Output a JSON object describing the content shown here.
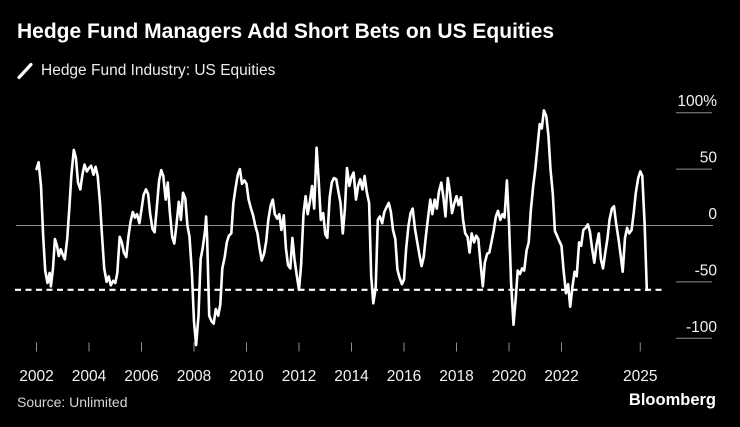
{
  "header": {
    "title": "Hedge Fund Managers Add Short Bets on US Equities"
  },
  "legend": {
    "marker": "diagonal-line-marker",
    "series_label": "Hedge Fund Industry: US Equities"
  },
  "footer": {
    "source": "Source: Unlimited",
    "brand": "Bloomberg"
  },
  "colors": {
    "background": "#000000",
    "series_line": "#ffffff",
    "zero_line": "#8f8f8f",
    "tick": "#8f8f8f",
    "axis_text": "#f2f2f2",
    "reference_dash": "#ffffff"
  },
  "chart_data": {
    "type": "line",
    "title": "Hedge Fund Managers Add Short Bets on US Equities",
    "ylabel": "%",
    "ylim": [
      -115,
      110
    ],
    "xlim": [
      2001.6,
      2025.6
    ],
    "grid": "zero-line-only",
    "legend_position": "top-left",
    "y_axis": {
      "side": "right",
      "ticks": [
        {
          "label": "100%",
          "value": 100
        },
        {
          "label": "50",
          "value": 50
        },
        {
          "label": "0",
          "value": 0
        },
        {
          "label": "-50",
          "value": -50
        },
        {
          "label": "-100",
          "value": -100
        }
      ]
    },
    "x_axis": {
      "ticks": [
        {
          "label": "2002",
          "year": 2002
        },
        {
          "label": "2004",
          "year": 2004
        },
        {
          "label": "2006",
          "year": 2006
        },
        {
          "label": "2008",
          "year": 2008
        },
        {
          "label": "2010",
          "year": 2010
        },
        {
          "label": "2012",
          "year": 2012
        },
        {
          "label": "2014",
          "year": 2014
        },
        {
          "label": "2016",
          "year": 2016
        },
        {
          "label": "2018",
          "year": 2018
        },
        {
          "label": "2020",
          "year": 2020
        },
        {
          "label": "2022",
          "year": 2022
        },
        {
          "label": "2025",
          "year": 2025
        }
      ]
    },
    "zero_line_value": 0,
    "reference_line": {
      "style": "dashed",
      "value": -57
    },
    "series": [
      {
        "name": "Hedge Fund Industry: US Equities",
        "unit": "%",
        "points": [
          [
            2002.0,
            50
          ],
          [
            2002.08,
            56
          ],
          [
            2002.17,
            35
          ],
          [
            2002.25,
            -8
          ],
          [
            2002.33,
            -40
          ],
          [
            2002.42,
            -51
          ],
          [
            2002.5,
            -42
          ],
          [
            2002.55,
            -54
          ],
          [
            2002.63,
            -38
          ],
          [
            2002.7,
            -12
          ],
          [
            2002.78,
            -18
          ],
          [
            2002.85,
            -27
          ],
          [
            2002.92,
            -21
          ],
          [
            2003.0,
            -26
          ],
          [
            2003.08,
            -30
          ],
          [
            2003.17,
            -12
          ],
          [
            2003.25,
            15
          ],
          [
            2003.33,
            45
          ],
          [
            2003.42,
            67
          ],
          [
            2003.5,
            60
          ],
          [
            2003.58,
            38
          ],
          [
            2003.67,
            32
          ],
          [
            2003.75,
            45
          ],
          [
            2003.83,
            54
          ],
          [
            2003.92,
            48
          ],
          [
            2004.0,
            51
          ],
          [
            2004.08,
            53
          ],
          [
            2004.17,
            45
          ],
          [
            2004.25,
            52
          ],
          [
            2004.33,
            44
          ],
          [
            2004.42,
            20
          ],
          [
            2004.5,
            -10
          ],
          [
            2004.58,
            -38
          ],
          [
            2004.67,
            -50
          ],
          [
            2004.75,
            -45
          ],
          [
            2004.83,
            -53
          ],
          [
            2004.92,
            -49
          ],
          [
            2005.0,
            -51
          ],
          [
            2005.08,
            -42
          ],
          [
            2005.17,
            -10
          ],
          [
            2005.25,
            -15
          ],
          [
            2005.33,
            -24
          ],
          [
            2005.42,
            -28
          ],
          [
            2005.5,
            -10
          ],
          [
            2005.58,
            3
          ],
          [
            2005.67,
            12
          ],
          [
            2005.75,
            7
          ],
          [
            2005.83,
            10
          ],
          [
            2005.92,
            2
          ],
          [
            2006.0,
            14
          ],
          [
            2006.08,
            27
          ],
          [
            2006.17,
            32
          ],
          [
            2006.25,
            28
          ],
          [
            2006.33,
            10
          ],
          [
            2006.42,
            -3
          ],
          [
            2006.5,
            -6
          ],
          [
            2006.58,
            15
          ],
          [
            2006.67,
            40
          ],
          [
            2006.75,
            49
          ],
          [
            2006.83,
            44
          ],
          [
            2006.92,
            23
          ],
          [
            2007.0,
            38
          ],
          [
            2007.08,
            12
          ],
          [
            2007.17,
            -10
          ],
          [
            2007.25,
            -16
          ],
          [
            2007.33,
            0
          ],
          [
            2007.42,
            21
          ],
          [
            2007.5,
            5
          ],
          [
            2007.58,
            29
          ],
          [
            2007.67,
            24
          ],
          [
            2007.75,
            0
          ],
          [
            2007.83,
            -10
          ],
          [
            2007.92,
            -42
          ],
          [
            2008.0,
            -85
          ],
          [
            2008.08,
            -106
          ],
          [
            2008.17,
            -80
          ],
          [
            2008.25,
            -30
          ],
          [
            2008.33,
            -20
          ],
          [
            2008.42,
            -5
          ],
          [
            2008.46,
            8
          ],
          [
            2008.5,
            -10
          ],
          [
            2008.58,
            -80
          ],
          [
            2008.67,
            -85
          ],
          [
            2008.75,
            -87
          ],
          [
            2008.83,
            -74
          ],
          [
            2008.92,
            -80
          ],
          [
            2009.0,
            -70
          ],
          [
            2009.08,
            -38
          ],
          [
            2009.17,
            -28
          ],
          [
            2009.25,
            -15
          ],
          [
            2009.33,
            -9
          ],
          [
            2009.42,
            -7
          ],
          [
            2009.5,
            20
          ],
          [
            2009.58,
            33
          ],
          [
            2009.67,
            45
          ],
          [
            2009.75,
            50
          ],
          [
            2009.83,
            37
          ],
          [
            2009.92,
            40
          ],
          [
            2010.0,
            37
          ],
          [
            2010.08,
            23
          ],
          [
            2010.17,
            15
          ],
          [
            2010.25,
            9
          ],
          [
            2010.33,
            0
          ],
          [
            2010.42,
            -7
          ],
          [
            2010.5,
            -20
          ],
          [
            2010.58,
            -31
          ],
          [
            2010.67,
            -25
          ],
          [
            2010.75,
            -14
          ],
          [
            2010.83,
            5
          ],
          [
            2010.92,
            18
          ],
          [
            2011.0,
            23
          ],
          [
            2011.08,
            10
          ],
          [
            2011.17,
            6
          ],
          [
            2011.25,
            10
          ],
          [
            2011.33,
            -4
          ],
          [
            2011.42,
            9
          ],
          [
            2011.5,
            -20
          ],
          [
            2011.58,
            -35
          ],
          [
            2011.67,
            -38
          ],
          [
            2011.75,
            -11
          ],
          [
            2011.83,
            -30
          ],
          [
            2011.92,
            -45
          ],
          [
            2012.0,
            -57
          ],
          [
            2012.08,
            -35
          ],
          [
            2012.17,
            10
          ],
          [
            2012.25,
            26
          ],
          [
            2012.33,
            10
          ],
          [
            2012.42,
            22
          ],
          [
            2012.5,
            35
          ],
          [
            2012.58,
            15
          ],
          [
            2012.67,
            69
          ],
          [
            2012.75,
            40
          ],
          [
            2012.83,
            5
          ],
          [
            2012.92,
            11
          ],
          [
            2013.0,
            -8
          ],
          [
            2013.08,
            -11
          ],
          [
            2013.17,
            25
          ],
          [
            2013.25,
            38
          ],
          [
            2013.33,
            42
          ],
          [
            2013.42,
            41
          ],
          [
            2013.5,
            30
          ],
          [
            2013.58,
            20
          ],
          [
            2013.67,
            -7
          ],
          [
            2013.75,
            15
          ],
          [
            2013.83,
            51
          ],
          [
            2013.92,
            35
          ],
          [
            2014.0,
            43
          ],
          [
            2014.08,
            47
          ],
          [
            2014.17,
            23
          ],
          [
            2014.25,
            35
          ],
          [
            2014.33,
            41
          ],
          [
            2014.42,
            32
          ],
          [
            2014.5,
            44
          ],
          [
            2014.58,
            30
          ],
          [
            2014.67,
            20
          ],
          [
            2014.75,
            -45
          ],
          [
            2014.83,
            -69
          ],
          [
            2014.92,
            -55
          ],
          [
            2015.0,
            5
          ],
          [
            2015.08,
            8
          ],
          [
            2015.17,
            2
          ],
          [
            2015.25,
            12
          ],
          [
            2015.33,
            16
          ],
          [
            2015.42,
            20
          ],
          [
            2015.5,
            12
          ],
          [
            2015.58,
            -4
          ],
          [
            2015.67,
            -12
          ],
          [
            2015.75,
            -39
          ],
          [
            2015.83,
            -46
          ],
          [
            2015.92,
            -52
          ],
          [
            2016.0,
            -48
          ],
          [
            2016.08,
            -21
          ],
          [
            2016.17,
            0
          ],
          [
            2016.25,
            11
          ],
          [
            2016.33,
            15
          ],
          [
            2016.42,
            -3
          ],
          [
            2016.5,
            -14
          ],
          [
            2016.58,
            -25
          ],
          [
            2016.67,
            -36
          ],
          [
            2016.75,
            -28
          ],
          [
            2016.83,
            -10
          ],
          [
            2016.92,
            8
          ],
          [
            2017.0,
            23
          ],
          [
            2017.08,
            10
          ],
          [
            2017.17,
            23
          ],
          [
            2017.25,
            15
          ],
          [
            2017.33,
            30
          ],
          [
            2017.42,
            38
          ],
          [
            2017.5,
            25
          ],
          [
            2017.58,
            8
          ],
          [
            2017.67,
            42
          ],
          [
            2017.75,
            30
          ],
          [
            2017.83,
            11
          ],
          [
            2017.92,
            20
          ],
          [
            2018.0,
            26
          ],
          [
            2018.08,
            18
          ],
          [
            2018.17,
            25
          ],
          [
            2018.25,
            5
          ],
          [
            2018.33,
            -7
          ],
          [
            2018.42,
            -10
          ],
          [
            2018.5,
            -24
          ],
          [
            2018.58,
            -7
          ],
          [
            2018.67,
            -15
          ],
          [
            2018.75,
            -9
          ],
          [
            2018.83,
            -12
          ],
          [
            2018.92,
            -35
          ],
          [
            2019.0,
            -54
          ],
          [
            2019.08,
            -33
          ],
          [
            2019.17,
            -25
          ],
          [
            2019.25,
            -24
          ],
          [
            2019.33,
            -15
          ],
          [
            2019.42,
            -4
          ],
          [
            2019.5,
            8
          ],
          [
            2019.58,
            13
          ],
          [
            2019.67,
            5
          ],
          [
            2019.75,
            10
          ],
          [
            2019.83,
            7
          ],
          [
            2019.92,
            40
          ],
          [
            2020.0,
            2
          ],
          [
            2020.08,
            -51
          ],
          [
            2020.17,
            -88
          ],
          [
            2020.25,
            -66
          ],
          [
            2020.33,
            -40
          ],
          [
            2020.42,
            -43
          ],
          [
            2020.5,
            -38
          ],
          [
            2020.58,
            -40
          ],
          [
            2020.67,
            -22
          ],
          [
            2020.75,
            -15
          ],
          [
            2020.83,
            13
          ],
          [
            2020.92,
            35
          ],
          [
            2021.0,
            50
          ],
          [
            2021.08,
            68
          ],
          [
            2021.17,
            90
          ],
          [
            2021.25,
            86
          ],
          [
            2021.33,
            102
          ],
          [
            2021.42,
            97
          ],
          [
            2021.5,
            80
          ],
          [
            2021.58,
            50
          ],
          [
            2021.67,
            28
          ],
          [
            2021.75,
            -5
          ],
          [
            2021.83,
            -9
          ],
          [
            2021.92,
            -14
          ],
          [
            2022.0,
            -18
          ],
          [
            2022.08,
            -40
          ],
          [
            2022.17,
            -60
          ],
          [
            2022.25,
            -52
          ],
          [
            2022.33,
            -72
          ],
          [
            2022.42,
            -54
          ],
          [
            2022.5,
            -41
          ],
          [
            2022.58,
            -45
          ],
          [
            2022.67,
            -15
          ],
          [
            2022.75,
            -18
          ],
          [
            2022.83,
            -4
          ],
          [
            2022.92,
            -2
          ],
          [
            2023.0,
            1
          ],
          [
            2023.08,
            -5
          ],
          [
            2023.17,
            -21
          ],
          [
            2023.25,
            -33
          ],
          [
            2023.33,
            -18
          ],
          [
            2023.42,
            -7
          ],
          [
            2023.5,
            -30
          ],
          [
            2023.58,
            -38
          ],
          [
            2023.67,
            -24
          ],
          [
            2023.75,
            -12
          ],
          [
            2023.83,
            5
          ],
          [
            2023.92,
            15
          ],
          [
            2024.0,
            17
          ],
          [
            2024.08,
            2
          ],
          [
            2024.17,
            -12
          ],
          [
            2024.25,
            -26
          ],
          [
            2024.33,
            -41
          ],
          [
            2024.42,
            -11
          ],
          [
            2024.5,
            -2
          ],
          [
            2024.58,
            -7
          ],
          [
            2024.67,
            -4
          ],
          [
            2024.75,
            11
          ],
          [
            2024.83,
            29
          ],
          [
            2024.92,
            42
          ],
          [
            2025.0,
            48
          ],
          [
            2025.08,
            44
          ],
          [
            2025.17,
            0
          ],
          [
            2025.25,
            -57
          ]
        ]
      }
    ]
  }
}
